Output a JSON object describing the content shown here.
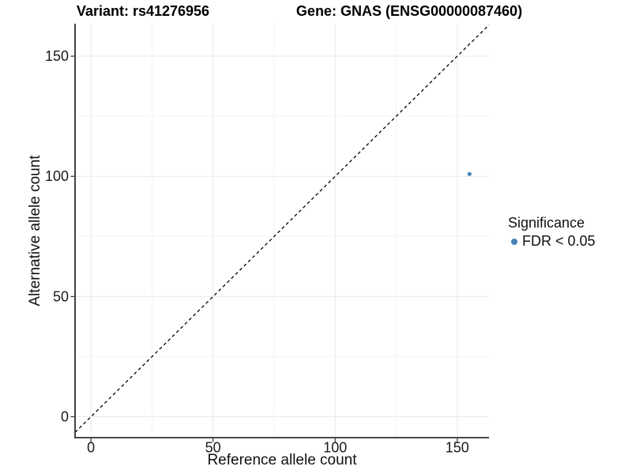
{
  "chart_data": {
    "type": "scatter",
    "title_left": "Variant: rs41276956",
    "title_right": "Gene: GNAS (ENSG00000087460)",
    "xlabel": "Reference allele count",
    "ylabel": "Alternative allele count",
    "x_domain": [
      -6.5,
      163.0
    ],
    "y_domain": [
      -8.7,
      163.5
    ],
    "x_major_ticks": [
      0,
      50,
      100,
      150
    ],
    "x_minor_ticks": [
      25,
      75,
      125
    ],
    "y_major_ticks": [
      0,
      50,
      100,
      150
    ],
    "y_minor_ticks": [
      25,
      75,
      125
    ],
    "grid": "major+minor",
    "identity_line": true,
    "points": [
      {
        "x": 155,
        "y": 101,
        "series": "FDR < 0.05"
      }
    ],
    "legend": {
      "position": "right",
      "title": "Significance",
      "items": [
        {
          "label": "FDR < 0.05",
          "color": "#4682B4"
        }
      ]
    },
    "colors": {
      "point": "#4682B4",
      "identity_line": "#000000",
      "grid_major": "#e9e9e9",
      "grid_minor": "#f4f4f4",
      "axis_line": "#2f2f2f",
      "tick_text": "#1a1a1a",
      "background": "#ffffff"
    }
  }
}
